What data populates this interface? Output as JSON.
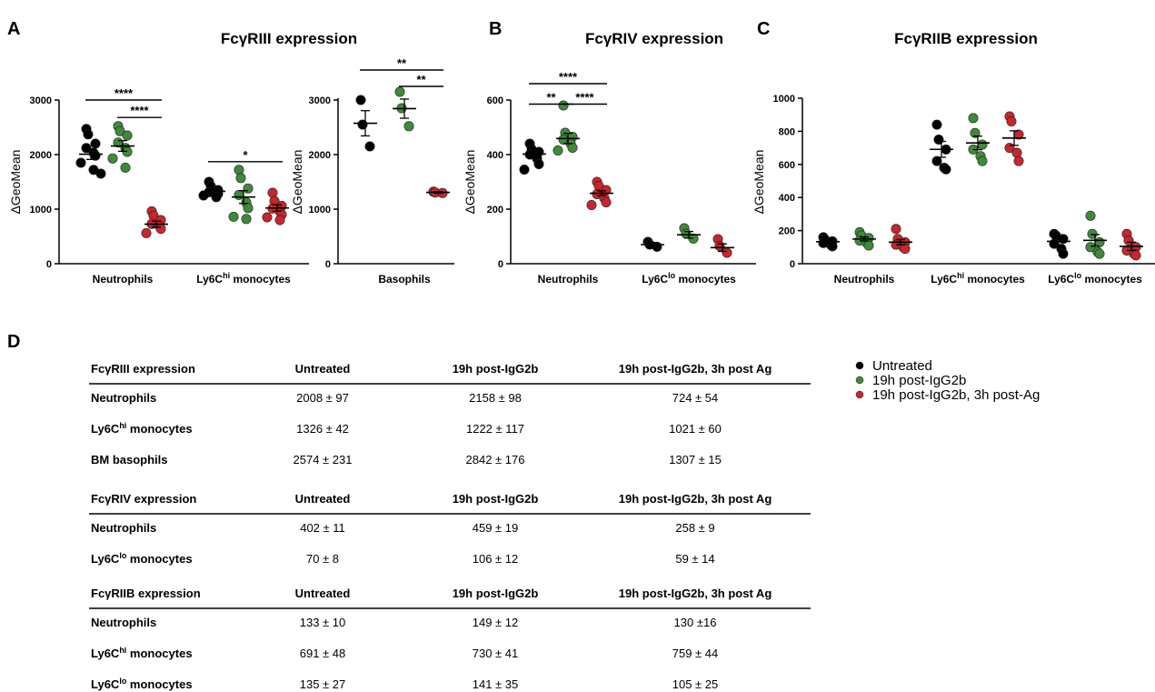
{
  "colors": {
    "untreated": "#000000",
    "post_igg2b": "#3f8a3a",
    "post_ag": "#c8262d"
  },
  "panels": {
    "A": "A",
    "B": "B",
    "C": "C",
    "D": "D"
  },
  "legend": [
    "Untreated",
    "19h post-IgG2b",
    "19h post-IgG2b, 3h post-Ag"
  ],
  "chart_data": [
    {
      "id": "A1",
      "type": "scatter",
      "panel": "A",
      "title": "FcγRIII expression",
      "ylabel": "ΔGeoMean",
      "ylim": [
        0,
        3000
      ],
      "yticks": [
        0,
        1000,
        2000,
        3000
      ],
      "categories": [
        {
          "main": "Neutrophils",
          "sup": "",
          "suffix": ""
        },
        {
          "main": "Ly6C",
          "sup": "hi",
          "suffix": " monocytes"
        }
      ],
      "groups": [
        {
          "cat": 0,
          "color": "untreated",
          "mean": 2008,
          "sem": 97,
          "points": [
            2470,
            2370,
            2200,
            2120,
            2030,
            1980,
            1850,
            1720,
            1650
          ]
        },
        {
          "cat": 0,
          "color": "post_igg2b",
          "mean": 2158,
          "sem": 98,
          "points": [
            2520,
            2430,
            2350,
            2220,
            2120,
            2050,
            1930,
            1760
          ]
        },
        {
          "cat": 0,
          "color": "post_ag",
          "mean": 724,
          "sem": 54,
          "points": [
            960,
            880,
            800,
            730,
            700,
            640,
            560
          ]
        },
        {
          "cat": 1,
          "color": "untreated",
          "mean": 1326,
          "sem": 42,
          "points": [
            1500,
            1420,
            1350,
            1310,
            1300,
            1280,
            1250,
            1220
          ]
        },
        {
          "cat": 1,
          "color": "post_igg2b",
          "mean": 1222,
          "sem": 117,
          "points": [
            1720,
            1570,
            1380,
            1260,
            1120,
            1020,
            860,
            820
          ]
        },
        {
          "cat": 1,
          "color": "post_ag",
          "mean": 1021,
          "sem": 60,
          "points": [
            1300,
            1150,
            1060,
            1010,
            960,
            900,
            850,
            800
          ]
        }
      ],
      "significance": [
        {
          "from": 0,
          "to": 2,
          "label": "****",
          "y": 3000
        },
        {
          "from": 1,
          "to": 2,
          "label": "****",
          "y": 2680
        },
        {
          "from": 3,
          "to": 5,
          "label": "*",
          "y": 1870
        }
      ]
    },
    {
      "id": "A2",
      "type": "scatter",
      "panel": "A",
      "title": "",
      "ylabel": "ΔGeoMean",
      "ylim": [
        0,
        3500
      ],
      "yticks": [
        0,
        1000,
        2000,
        3000
      ],
      "categories": [
        {
          "main": "Basophils",
          "sup": "",
          "suffix": ""
        }
      ],
      "groups": [
        {
          "cat": 0,
          "color": "untreated",
          "mean": 2574,
          "sem": 231,
          "points": [
            3000,
            2550,
            2150
          ]
        },
        {
          "cat": 0,
          "color": "post_igg2b",
          "mean": 2842,
          "sem": 176,
          "points": [
            3150,
            2850,
            2520
          ]
        },
        {
          "cat": 0,
          "color": "post_ag",
          "mean": 1307,
          "sem": 15,
          "points": [
            1320,
            1305,
            1295
          ]
        }
      ],
      "significance": [
        {
          "from": 0,
          "to": 2,
          "label": "**",
          "y": 3550
        },
        {
          "from": 1,
          "to": 2,
          "label": "**",
          "y": 3250
        }
      ]
    },
    {
      "id": "B",
      "type": "scatter",
      "panel": "B",
      "title": "FcγRIV expression",
      "ylabel": "ΔGeoMean",
      "ylim": [
        0,
        600
      ],
      "yticks": [
        0,
        200,
        400,
        600
      ],
      "categories": [
        {
          "main": "Neutrophils",
          "sup": "",
          "suffix": ""
        },
        {
          "main": "Ly6C",
          "sup": "lo",
          "suffix": " monocytes"
        }
      ],
      "groups": [
        {
          "cat": 0,
          "color": "untreated",
          "mean": 402,
          "sem": 11,
          "points": [
            440,
            420,
            410,
            400,
            385,
            365,
            345
          ]
        },
        {
          "cat": 0,
          "color": "post_igg2b",
          "mean": 459,
          "sem": 19,
          "points": [
            580,
            480,
            465,
            455,
            440,
            425,
            415
          ]
        },
        {
          "cat": 0,
          "color": "post_ag",
          "mean": 258,
          "sem": 9,
          "points": [
            300,
            285,
            270,
            255,
            240,
            225,
            215
          ]
        },
        {
          "cat": 1,
          "color": "untreated",
          "mean": 70,
          "sem": 8,
          "points": [
            80,
            70,
            62
          ]
        },
        {
          "cat": 1,
          "color": "post_igg2b",
          "mean": 106,
          "sem": 12,
          "points": [
            130,
            110,
            92
          ]
        },
        {
          "cat": 1,
          "color": "post_ag",
          "mean": 59,
          "sem": 14,
          "points": [
            90,
            65,
            40
          ]
        }
      ],
      "significance": [
        {
          "from": 0,
          "to": 2,
          "label": "****",
          "y": 660
        },
        {
          "from": 0,
          "to": 1,
          "label": "**",
          "y": 585
        },
        {
          "from": 1,
          "to": 2,
          "label": "****",
          "y": 585
        }
      ]
    },
    {
      "id": "C",
      "type": "scatter",
      "panel": "C",
      "title": "FcγRIIB expression",
      "ylabel": "ΔGeoMean",
      "ylim": [
        0,
        1000
      ],
      "yticks": [
        0,
        200,
        400,
        600,
        800,
        1000
      ],
      "categories": [
        {
          "main": "Neutrophils",
          "sup": "",
          "suffix": ""
        },
        {
          "main": "Ly6C",
          "sup": "hi",
          "suffix": " monocytes"
        },
        {
          "main": "Ly6C",
          "sup": "lo",
          "suffix": " monocytes"
        }
      ],
      "groups": [
        {
          "cat": 0,
          "color": "untreated",
          "mean": 133,
          "sem": 10,
          "points": [
            160,
            145,
            135,
            125,
            115,
            105
          ]
        },
        {
          "cat": 0,
          "color": "post_igg2b",
          "mean": 149,
          "sem": 12,
          "points": [
            190,
            170,
            155,
            140,
            125,
            110
          ]
        },
        {
          "cat": 0,
          "color": "post_ag",
          "mean": 130,
          "sem": 16,
          "points": [
            210,
            150,
            130,
            115,
            100,
            90
          ]
        },
        {
          "cat": 1,
          "color": "untreated",
          "mean": 691,
          "sem": 48,
          "points": [
            840,
            750,
            690,
            620,
            580,
            570
          ]
        },
        {
          "cat": 1,
          "color": "post_igg2b",
          "mean": 730,
          "sem": 41,
          "points": [
            880,
            790,
            720,
            690,
            650,
            620
          ]
        },
        {
          "cat": 1,
          "color": "post_ag",
          "mean": 759,
          "sem": 44,
          "points": [
            890,
            860,
            780,
            700,
            670,
            620
          ]
        },
        {
          "cat": 2,
          "color": "untreated",
          "mean": 135,
          "sem": 27,
          "points": [
            180,
            170,
            150,
            120,
            90,
            60
          ]
        },
        {
          "cat": 2,
          "color": "post_igg2b",
          "mean": 141,
          "sem": 35,
          "points": [
            290,
            180,
            130,
            100,
            70,
            60
          ]
        },
        {
          "cat": 2,
          "color": "post_ag",
          "mean": 105,
          "sem": 25,
          "points": [
            180,
            140,
            100,
            80,
            60,
            50
          ]
        }
      ],
      "significance": []
    }
  ],
  "tables": [
    {
      "header": [
        "FcγRIII expression",
        "Untreated",
        "19h post-IgG2b",
        "19h post-IgG2b, 3h post Ag"
      ],
      "rows": [
        {
          "main": "Neutrophils",
          "sup": "",
          "suffix": "",
          "cells": [
            "2008  ± 97",
            "2158  ± 98",
            "724  ± 54"
          ]
        },
        {
          "main": "Ly6C",
          "sup": "hi",
          "suffix": " monocytes",
          "cells": [
            "1326  ± 42",
            "1222  ±  117",
            "1021  ± 60"
          ]
        },
        {
          "main": "BM basophils",
          "sup": "",
          "suffix": "",
          "cells": [
            "2574  ± 231",
            "2842  ± 176",
            "1307  ± 15"
          ]
        }
      ]
    },
    {
      "header": [
        "FcγRIV expression",
        "Untreated",
        "19h post-IgG2b",
        "19h post-IgG2b, 3h post Ag"
      ],
      "rows": [
        {
          "main": "Neutrophils",
          "sup": "",
          "suffix": "",
          "cells": [
            "402  ± 11",
            "459  ± 19",
            "258  ± 9"
          ]
        },
        {
          "main": "Ly6C",
          "sup": "lo",
          "suffix": " monocytes",
          "cells": [
            "70 ± 8",
            "106  ± 12",
            "59  ± 14"
          ]
        }
      ]
    },
    {
      "header": [
        "FcγRIIB expression",
        "Untreated",
        "19h post-IgG2b",
        "19h post-IgG2b, 3h post Ag"
      ],
      "rows": [
        {
          "main": "Neutrophils",
          "sup": "",
          "suffix": "",
          "cells": [
            "133 ± 10",
            "149 ± 12",
            "130 ±16"
          ]
        },
        {
          "main": "Ly6C",
          "sup": "hi",
          "suffix": " monocytes",
          "cells": [
            "691 ± 48",
            "730 ± 41",
            "759 ± 44"
          ]
        },
        {
          "main": "Ly6C",
          "sup": "lo",
          "suffix": " monocytes",
          "cells": [
            "135 ± 27",
            "141 ± 35",
            "105 ± 25"
          ]
        }
      ]
    }
  ]
}
